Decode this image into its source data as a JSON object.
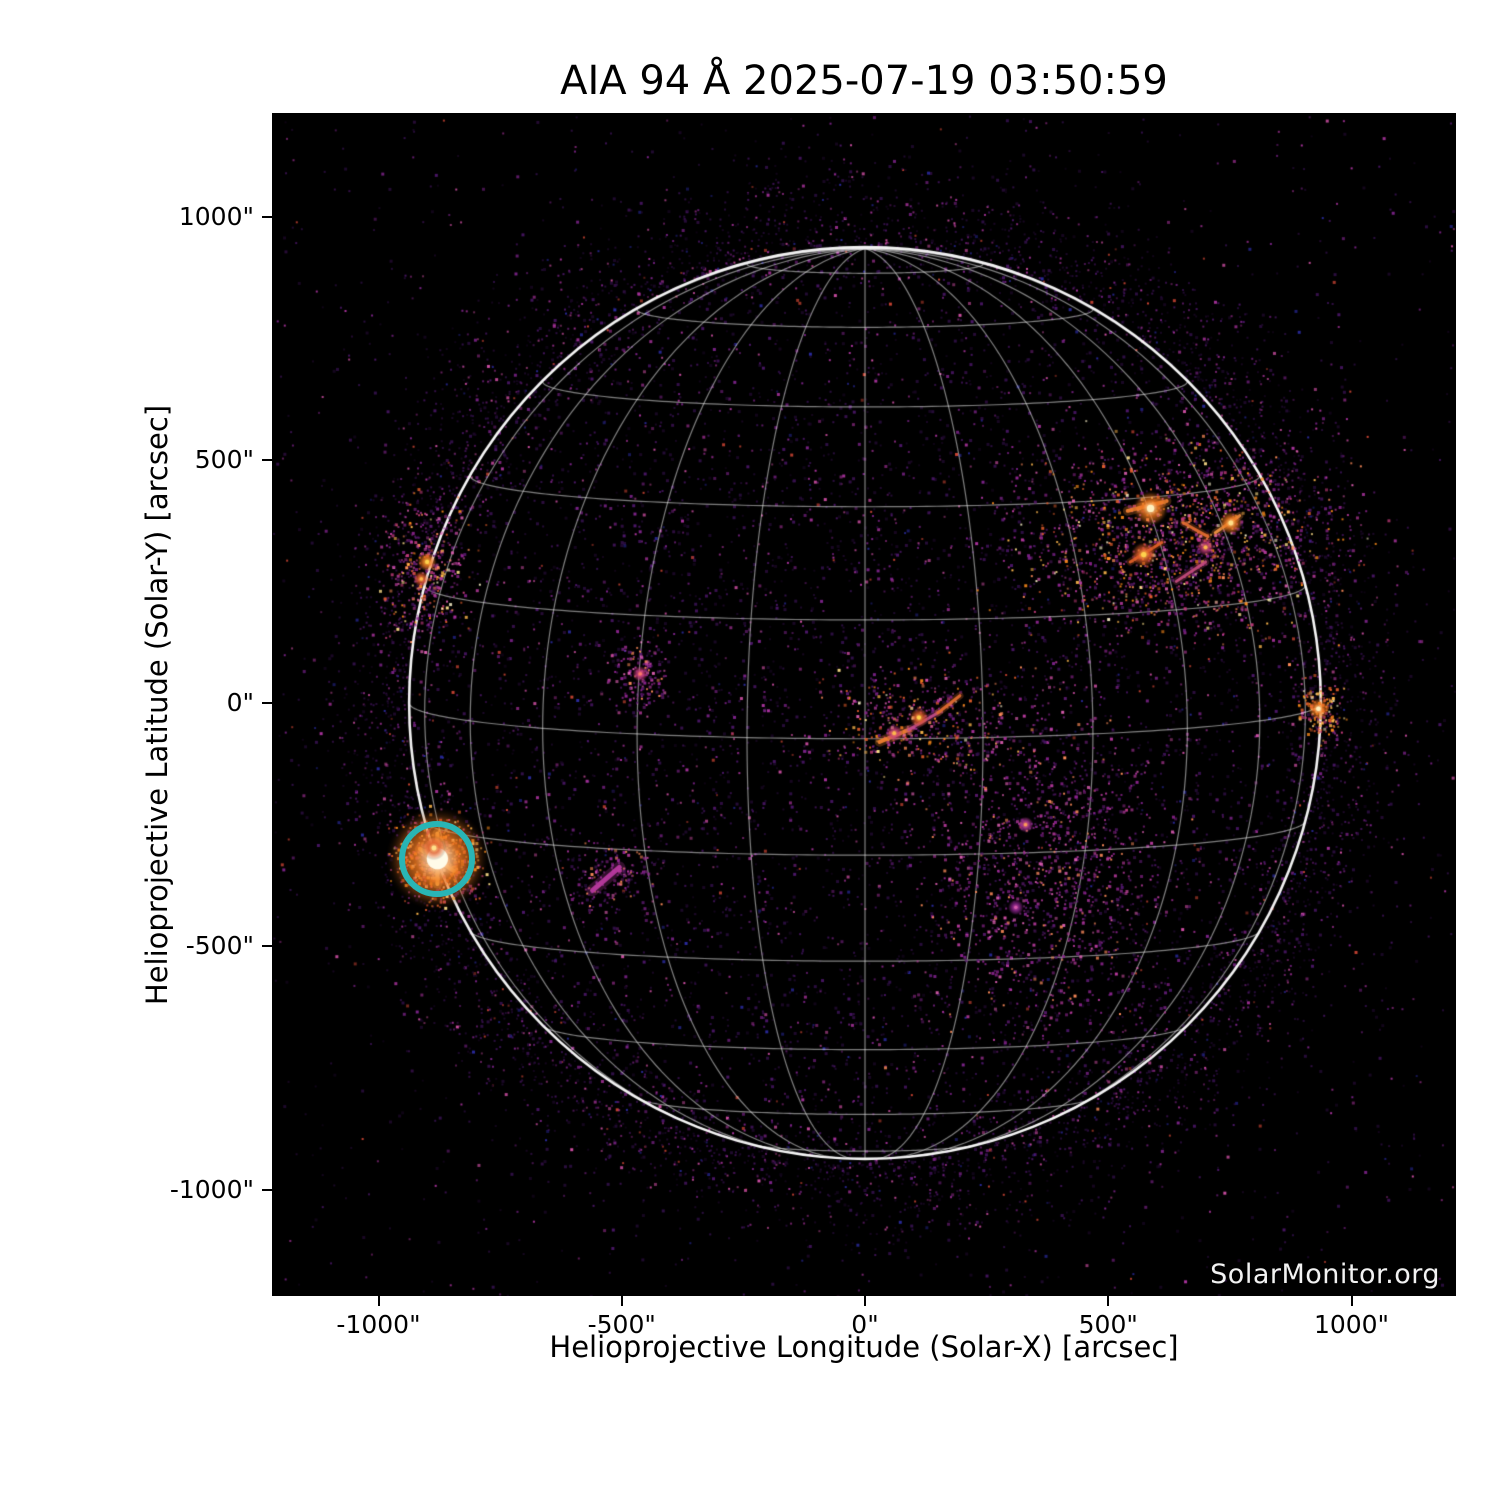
{
  "chart_data": {
    "type": "heatmap",
    "title": "AIA 94 Å 2025-07-19 03:50:59",
    "instrument": "AIA",
    "wavelength": "94 Å",
    "datetime": "2025-07-19 03:50:59",
    "xlabel": "Helioprojective Longitude (Solar-X) [arcsec]",
    "ylabel": "Helioprojective Latitude (Solar-Y) [arcsec]",
    "x_ticks": [
      "-1000\"",
      "-500\"",
      "0\"",
      "500\"",
      "1000\""
    ],
    "x_tick_values": [
      -1000,
      -500,
      0,
      500,
      1000
    ],
    "y_ticks": [
      "1000\"",
      "500\"",
      "0\"",
      "-500\"",
      "-1000\""
    ],
    "y_tick_values": [
      1000,
      500,
      0,
      -500,
      -1000
    ],
    "xlim": [
      -1219,
      1215
    ],
    "ylim": [
      -1219,
      1213
    ],
    "grid_on": true,
    "watermark": "SolarMonitor.org",
    "solar_disk": {
      "center_arcsec": [
        0,
        0
      ],
      "radius_arcsec": 937,
      "grid_spacing_deg": 15,
      "b0_deg": 4.5
    },
    "colors": {
      "page_bg": "#ffffff",
      "plot_bg": "#000000",
      "grid_line": "rgba(235,235,235,0.55)",
      "limb": "rgba(255,255,255,0.95)",
      "flare_marker": "#29b5b5",
      "text": "#000000",
      "watermark_text": "#f2f2f2"
    },
    "noise_palette": [
      [
        "#1c0828",
        30
      ],
      [
        "#32104a",
        22
      ],
      [
        "#4b1668",
        18
      ],
      [
        "#7a2287",
        12
      ],
      [
        "#a8329c",
        8
      ],
      [
        "#d14fa6",
        5
      ],
      [
        "#2a2a9e",
        3
      ],
      [
        "#cc4433",
        2
      ]
    ],
    "hot_palette": [
      [
        "#c23a7a",
        25
      ],
      [
        "#e05c2a",
        25
      ],
      [
        "#ff8c1a",
        20
      ],
      [
        "#ffb84d",
        15
      ],
      [
        "#ffe08a",
        10
      ],
      [
        "#fff6cc",
        5
      ]
    ],
    "faint_palette": [
      [
        "#5a1a6e",
        28
      ],
      [
        "#8e2490",
        30
      ],
      [
        "#b83a9e",
        20
      ],
      [
        "#d85cae",
        12
      ],
      [
        "#ff8c5a",
        10
      ]
    ],
    "flare_marker": {
      "x_arcsec": -879,
      "y_arcsec": -320,
      "radius_arcsec": 78,
      "stroke_px": 6,
      "color": "#29b5b5"
    },
    "active_regions": [
      {
        "name": "northwest-complex",
        "x": 645,
        "y": 340,
        "sx": 160,
        "sy": 95,
        "count": 1500,
        "palette": "mixed",
        "cores": [
          {
            "x": 587,
            "y": 400,
            "r": 18,
            "inner": "#fff1c0",
            "outer": "#f07820"
          },
          {
            "x": 573,
            "y": 305,
            "r": 13,
            "inner": "#ffd34d",
            "outer": "#e05c2a"
          },
          {
            "x": 752,
            "y": 370,
            "r": 12,
            "inner": "#ffe08a",
            "outer": "#f07820"
          },
          {
            "x": 700,
            "y": 320,
            "r": 9,
            "inner": "#ffb84d",
            "outer": "#c23a7a"
          }
        ],
        "streaks": [
          {
            "x1": 540,
            "y1": 395,
            "x2": 620,
            "y2": 415,
            "w": 4,
            "color": "#f08030"
          },
          {
            "x1": 545,
            "y1": 290,
            "x2": 610,
            "y2": 330,
            "w": 3,
            "color": "#e06028"
          },
          {
            "x1": 720,
            "y1": 350,
            "x2": 770,
            "y2": 385,
            "w": 3,
            "color": "#f09040"
          },
          {
            "x1": 640,
            "y1": 250,
            "x2": 700,
            "y2": 290,
            "w": 3,
            "color": "#c24a7a"
          },
          {
            "x1": 655,
            "y1": 370,
            "x2": 705,
            "y2": 342,
            "w": 3,
            "color": "#e06c30"
          }
        ]
      },
      {
        "name": "east-limb-region",
        "x": -905,
        "y": 277,
        "sx": 45,
        "sy": 70,
        "count": 380,
        "palette": "mixed",
        "cores": [
          {
            "x": -900,
            "y": 290,
            "r": 10,
            "inner": "#ffd34d",
            "outer": "#f07820"
          },
          {
            "x": -912,
            "y": 255,
            "r": 8,
            "inner": "#ffb84d",
            "outer": "#e05c2a"
          }
        ],
        "streaks": []
      },
      {
        "name": "flare-site-se-limb",
        "x": -879,
        "y": -320,
        "sx": 42,
        "sy": 42,
        "count": 450,
        "palette": "hot",
        "cores": [
          {
            "x": -879,
            "y": -320,
            "r": 52,
            "inner": "#fffbe8",
            "outer": "#f07820"
          },
          {
            "x": -886,
            "y": -298,
            "r": 12,
            "inner": "#ffe08a",
            "outer": "#e05c2a"
          }
        ],
        "streaks": [
          {
            "x1": -879,
            "y1": -268,
            "x2": -879,
            "y2": -372,
            "w": 4,
            "color": "#ffd666"
          },
          {
            "x1": -915,
            "y1": -300,
            "x2": -845,
            "y2": -345,
            "w": 4,
            "color": "#ffcc55"
          }
        ]
      },
      {
        "name": "center-disk-region",
        "x": 111,
        "y": -35,
        "sx": 95,
        "sy": 50,
        "count": 380,
        "palette": "mixed",
        "cores": [
          {
            "x": 111,
            "y": -30,
            "r": 10,
            "inner": "#ffd34d",
            "outer": "#e05c2a"
          },
          {
            "x": 60,
            "y": -62,
            "r": 9,
            "inner": "#ffb84d",
            "outer": "#c23a7a"
          }
        ],
        "streaks": [
          {
            "x1": 30,
            "y1": -80,
            "x2": 90,
            "y2": -55,
            "w": 4,
            "color": "#f08030"
          },
          {
            "x1": 90,
            "y1": -55,
            "x2": 150,
            "y2": -20,
            "w": 3,
            "color": "#c24a8a"
          },
          {
            "x1": 150,
            "y1": -20,
            "x2": 195,
            "y2": 15,
            "w": 3,
            "color": "#e06c30"
          }
        ]
      },
      {
        "name": "southeast-faint-complex",
        "x": 368,
        "y": -339,
        "sx": 120,
        "sy": 170,
        "count": 1100,
        "palette": "faint",
        "cores": [
          {
            "x": 330,
            "y": -250,
            "r": 8,
            "inner": "#ff9a5a",
            "outer": "#b83a9e"
          },
          {
            "x": 310,
            "y": -420,
            "r": 8,
            "inner": "#d85cae",
            "outer": "#8e2490"
          }
        ],
        "streaks": []
      },
      {
        "name": "small-pink-region",
        "x": -464,
        "y": 55,
        "sx": 28,
        "sy": 40,
        "count": 150,
        "palette": "faint",
        "cores": [
          {
            "x": -462,
            "y": 60,
            "r": 7,
            "inner": "#ff7a6a",
            "outer": "#c23a7a"
          }
        ],
        "streaks": []
      },
      {
        "name": "faint-crescent",
        "x": -526,
        "y": -359,
        "sx": 50,
        "sy": 35,
        "count": 170,
        "palette": "faint",
        "cores": [],
        "streaks": [
          {
            "x1": -560,
            "y1": -385,
            "x2": -505,
            "y2": -338,
            "w": 5,
            "color": "#b83a9e"
          }
        ]
      },
      {
        "name": "west-limb-bright-point",
        "x": 932,
        "y": -14,
        "sx": 22,
        "sy": 30,
        "count": 150,
        "palette": "hot",
        "cores": [
          {
            "x": 932,
            "y": -12,
            "r": 11,
            "inner": "#fff1c0",
            "outer": "#f07820"
          }
        ],
        "streaks": []
      }
    ]
  }
}
